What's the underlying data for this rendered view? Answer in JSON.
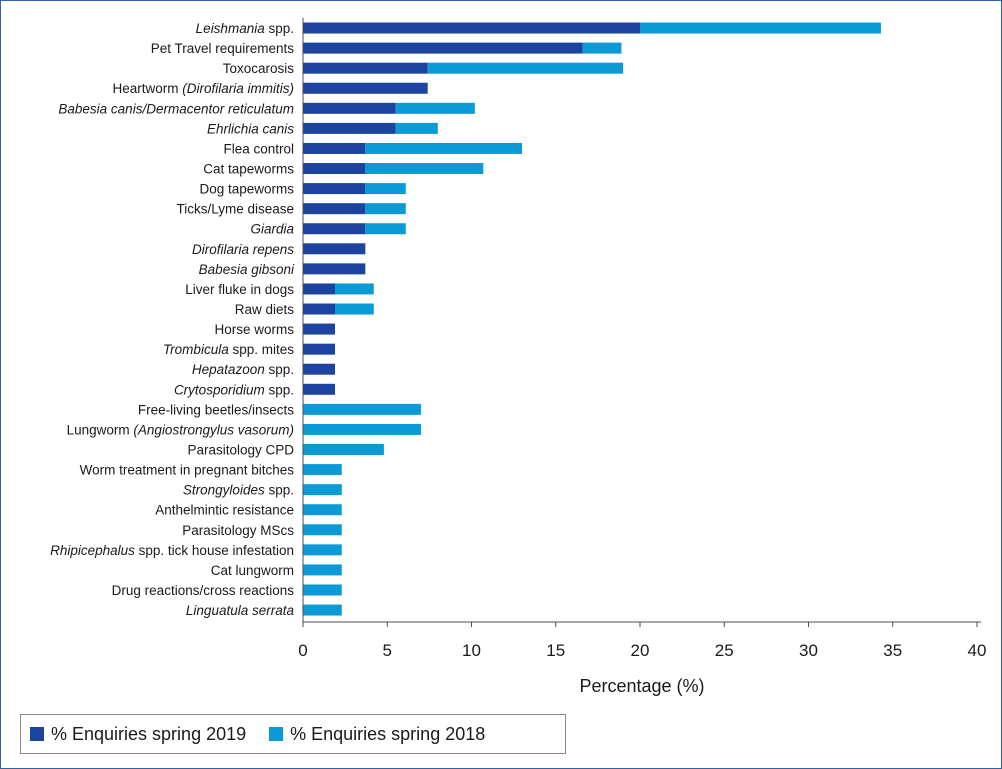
{
  "colors": {
    "s2019": "#1c43a0",
    "s2018": "#0c9ad6",
    "axis": "#4d4d4d",
    "frame": "#2f64a8"
  },
  "chart_data": {
    "type": "bar",
    "orientation": "horizontal",
    "stacked": true,
    "xlabel": "Percentage (%)",
    "xlim": [
      0,
      40
    ],
    "xticks": [
      0,
      5,
      10,
      15,
      20,
      25,
      30,
      35,
      40
    ],
    "grid": false,
    "legend_position": "bottom",
    "categories": [
      [
        {
          "t": "Leishmania",
          "i": true
        },
        {
          "t": " spp.",
          "i": false
        }
      ],
      [
        {
          "t": "Pet Travel requirements",
          "i": false
        }
      ],
      [
        {
          "t": "Toxocarosis",
          "i": false
        }
      ],
      [
        {
          "t": "Heartworm ",
          "i": false
        },
        {
          "t": "(Dirofilaria immitis)",
          "i": true
        }
      ],
      [
        {
          "t": "Babesia canis/Dermacentor reticulatum",
          "i": true
        }
      ],
      [
        {
          "t": "Ehrlichia canis",
          "i": true
        }
      ],
      [
        {
          "t": "Flea control",
          "i": false
        }
      ],
      [
        {
          "t": "Cat tapeworms",
          "i": false
        }
      ],
      [
        {
          "t": "Dog tapeworms",
          "i": false
        }
      ],
      [
        {
          "t": "Ticks/Lyme disease",
          "i": false
        }
      ],
      [
        {
          "t": "Giardia",
          "i": true
        }
      ],
      [
        {
          "t": "Dirofilaria repens",
          "i": true
        }
      ],
      [
        {
          "t": "Babesia gibsoni",
          "i": true
        }
      ],
      [
        {
          "t": "Liver fluke in dogs",
          "i": false
        }
      ],
      [
        {
          "t": "Raw diets",
          "i": false
        }
      ],
      [
        {
          "t": "Horse worms",
          "i": false
        }
      ],
      [
        {
          "t": "Trombicula",
          "i": true
        },
        {
          "t": " spp. mites",
          "i": false
        }
      ],
      [
        {
          "t": "Hepatazoon",
          "i": true
        },
        {
          "t": " spp.",
          "i": false
        }
      ],
      [
        {
          "t": "Crytosporidium",
          "i": true
        },
        {
          "t": " spp.",
          "i": false
        }
      ],
      [
        {
          "t": "Free-living beetles/insects",
          "i": false
        }
      ],
      [
        {
          "t": "Lungworm ",
          "i": false
        },
        {
          "t": "(Angiostrongylus vasorum)",
          "i": true
        }
      ],
      [
        {
          "t": "Parasitology CPD",
          "i": false
        }
      ],
      [
        {
          "t": "Worm treatment in pregnant bitches",
          "i": false
        }
      ],
      [
        {
          "t": "Strongyloides",
          "i": true
        },
        {
          "t": " spp.",
          "i": false
        }
      ],
      [
        {
          "t": "Anthelmintic resistance",
          "i": false
        }
      ],
      [
        {
          "t": "Parasitology MScs",
          "i": false
        }
      ],
      [
        {
          "t": "Rhipicephalus",
          "i": true
        },
        {
          "t": " spp. tick house infestation",
          "i": false
        }
      ],
      [
        {
          "t": "Cat lungworm",
          "i": false
        }
      ],
      [
        {
          "t": "Drug reactions/cross reactions",
          "i": false
        }
      ],
      [
        {
          "t": "Linguatula serrata",
          "i": true
        }
      ]
    ],
    "series": [
      {
        "name": "% Enquiries spring 2019",
        "color": "#1c43a0",
        "values": [
          20.0,
          16.6,
          7.4,
          7.4,
          5.5,
          5.5,
          3.7,
          3.7,
          3.7,
          3.7,
          3.7,
          3.7,
          3.7,
          1.9,
          1.9,
          1.9,
          1.9,
          1.9,
          1.9,
          0,
          0,
          0,
          0,
          0,
          0,
          0,
          0,
          0,
          0,
          0
        ]
      },
      {
        "name": "% Enquiries spring 2018",
        "color": "#0c9ad6",
        "values": [
          14.3,
          2.3,
          11.6,
          0,
          4.7,
          2.5,
          9.3,
          7.0,
          2.4,
          2.4,
          2.4,
          0,
          0,
          2.3,
          2.3,
          0,
          0,
          0,
          0,
          7.0,
          7.0,
          4.8,
          2.3,
          2.3,
          2.3,
          2.3,
          2.3,
          2.3,
          2.3,
          2.3
        ]
      }
    ]
  }
}
